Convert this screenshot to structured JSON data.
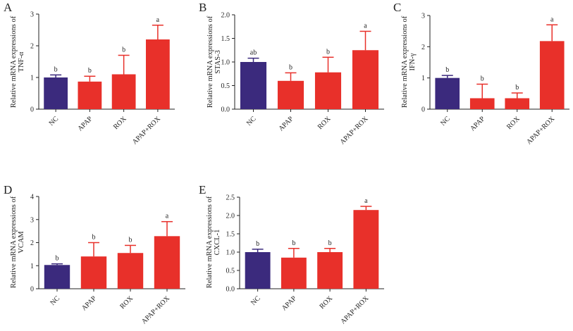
{
  "figure": {
    "background": "#ffffff"
  },
  "colors": {
    "nc_bar": "#3b2a7d",
    "treatment_bar": "#e8302a",
    "axis": "#222222",
    "error_bar_nc": "#3b2a7d",
    "error_bar_treatment": "#e8302a"
  },
  "chart_data": [
    {
      "panel_label": "A",
      "type": "bar",
      "ylabel_lines": [
        "Relative mRNA expressions of",
        "TNF-α"
      ],
      "categories": [
        "NC",
        "APAP",
        "ROX",
        "APAP+ROX"
      ],
      "values": [
        1.0,
        0.87,
        1.1,
        2.2
      ],
      "errors": [
        0.08,
        0.17,
        0.6,
        0.45
      ],
      "significance": [
        "b",
        "b",
        "b",
        "a"
      ],
      "ylim": [
        0,
        3
      ],
      "yticks": [
        0,
        1,
        2,
        3
      ],
      "ytick_labels": [
        "0",
        "1",
        "2",
        "3"
      ]
    },
    {
      "panel_label": "B",
      "type": "bar",
      "ylabel_lines": [
        "Relative mRNA expressions of",
        "STAS-3"
      ],
      "categories": [
        "NC",
        "APAP",
        "ROX",
        "APAP+ROX"
      ],
      "values": [
        1.0,
        0.6,
        0.78,
        1.25
      ],
      "errors": [
        0.08,
        0.17,
        0.32,
        0.4
      ],
      "significance": [
        "ab",
        "b",
        "b",
        "a"
      ],
      "ylim": [
        0,
        2.0
      ],
      "yticks": [
        0,
        0.5,
        1.0,
        1.5,
        2.0
      ],
      "ytick_labels": [
        "0.0",
        "0.5",
        "1.0",
        "1.5",
        "2.0"
      ]
    },
    {
      "panel_label": "C",
      "type": "bar",
      "ylabel_lines": [
        "Relative mRNA expressions of",
        "IFN-γ"
      ],
      "categories": [
        "NC",
        "APAP",
        "ROX",
        "APAP+ROX"
      ],
      "values": [
        1.0,
        0.35,
        0.35,
        2.18
      ],
      "errors": [
        0.08,
        0.45,
        0.17,
        0.52
      ],
      "significance": [
        "b",
        "b",
        "b",
        "a"
      ],
      "ylim": [
        0,
        3
      ],
      "yticks": [
        0,
        1,
        2,
        3
      ],
      "ytick_labels": [
        "0",
        "1",
        "2",
        "3"
      ]
    },
    {
      "panel_label": "D",
      "type": "bar",
      "ylabel_lines": [
        "Relative mRNA expressions of",
        "VCAM"
      ],
      "categories": [
        "NC",
        "APAP",
        "ROX",
        "APAP+ROX"
      ],
      "values": [
        1.03,
        1.4,
        1.55,
        2.28
      ],
      "errors": [
        0.05,
        0.6,
        0.33,
        0.63
      ],
      "significance": [
        "b",
        "b",
        "b",
        "a"
      ],
      "ylim": [
        0,
        4
      ],
      "yticks": [
        0,
        1,
        2,
        3,
        4
      ],
      "ytick_labels": [
        "0",
        "1",
        "2",
        "3",
        "4"
      ]
    },
    {
      "panel_label": "E",
      "type": "bar",
      "ylabel_lines": [
        "Relative mRNA expressions of",
        "CXCL-1"
      ],
      "categories": [
        "NC",
        "APAP",
        "ROX",
        "APAP+ROX"
      ],
      "values": [
        1.0,
        0.85,
        1.0,
        2.15
      ],
      "errors": [
        0.08,
        0.25,
        0.1,
        0.1
      ],
      "significance": [
        "b",
        "b",
        "b",
        "a"
      ],
      "ylim": [
        0,
        2.5
      ],
      "yticks": [
        0,
        0.5,
        1.0,
        1.5,
        2.0,
        2.5
      ],
      "ytick_labels": [
        "0.0",
        "0.5",
        "1.0",
        "1.5",
        "2.0",
        "2.5"
      ]
    }
  ]
}
